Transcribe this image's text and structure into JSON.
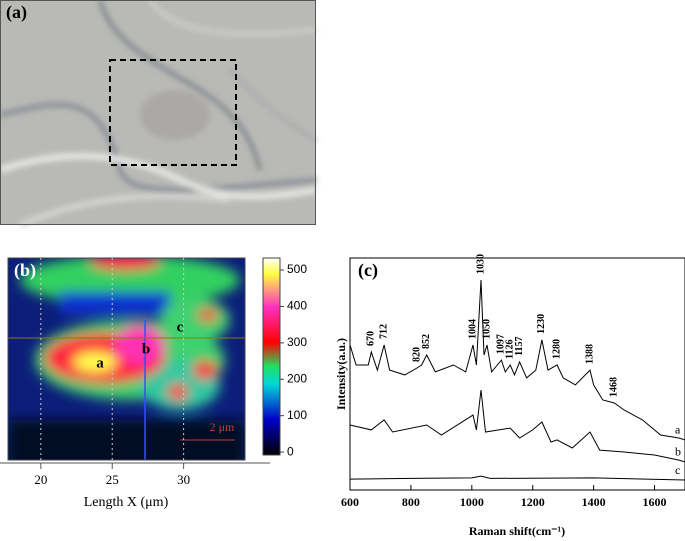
{
  "chart_data": [
    {
      "type": "image",
      "title": "(a)"
    },
    {
      "type": "heatmap",
      "title": "(b)",
      "xlabel": "Length X (μm)",
      "xlim": [
        17.7,
        34.3
      ],
      "xticks": [
        20,
        25,
        30
      ],
      "colorbar_lim": [
        -8,
        533
      ],
      "colorbar_ticks": [
        0,
        100,
        200,
        300,
        400,
        500
      ],
      "annotations": [
        "a",
        "b",
        "c",
        "2 μm"
      ]
    },
    {
      "type": "line",
      "title": "(c)",
      "xlabel": "Raman shift(cm⁻¹)",
      "ylabel": "Intensity(a.u.)",
      "xlim": [
        600,
        1700
      ],
      "ylim": [
        0,
        100
      ],
      "xticks": [
        600,
        800,
        1000,
        1200,
        1400,
        1600
      ],
      "series": [
        {
          "name": "a",
          "color": "#000000",
          "x": [
            600,
            620,
            660,
            670,
            690,
            712,
            730,
            780,
            820,
            835,
            852,
            880,
            940,
            980,
            1004,
            1015,
            1030,
            1040,
            1050,
            1065,
            1097,
            1110,
            1126,
            1140,
            1157,
            1180,
            1210,
            1230,
            1250,
            1280,
            1300,
            1340,
            1388,
            1400,
            1430,
            1468,
            1500,
            1560,
            1620,
            1680,
            1700
          ],
          "values": [
            62.5,
            53.9,
            53.9,
            59.5,
            51.7,
            62.5,
            51.7,
            49.6,
            52.6,
            53.9,
            58.2,
            50.9,
            53.9,
            50.9,
            62.5,
            53.9,
            90.5,
            58.2,
            62.5,
            50.9,
            56.0,
            50.9,
            53.9,
            49.6,
            55.2,
            48.3,
            51.7,
            64.7,
            51.7,
            53.9,
            48.3,
            45.3,
            51.7,
            45.3,
            38.8,
            37.5,
            34.5,
            30.2,
            23.7,
            22.4,
            21.6
          ]
        },
        {
          "name": "b",
          "color": "#000000",
          "x": [
            600,
            670,
            712,
            740,
            852,
            900,
            1004,
            1015,
            1030,
            1045,
            1126,
            1157,
            1200,
            1230,
            1260,
            1280,
            1330,
            1388,
            1420,
            1500,
            1600,
            1680,
            1700
          ],
          "values": [
            28.0,
            25.9,
            30.2,
            25.0,
            28.0,
            23.7,
            32.3,
            25.9,
            43.1,
            25.0,
            26.7,
            22.4,
            25.9,
            29.3,
            20.7,
            21.6,
            18.1,
            25.0,
            17.2,
            16.4,
            15.1,
            12.9,
            12.1
          ]
        },
        {
          "name": "c",
          "color": "#000000",
          "x": [
            600,
            800,
            1000,
            1030,
            1060,
            1400,
            1700
          ],
          "values": [
            4.7,
            5.0,
            5.2,
            6.0,
            5.0,
            5.2,
            4.3
          ]
        }
      ],
      "peak_labels": [
        670,
        712,
        820,
        852,
        1004,
        1030,
        1050,
        1097,
        1126,
        1157,
        1230,
        1280,
        1388,
        1468
      ]
    }
  ]
}
